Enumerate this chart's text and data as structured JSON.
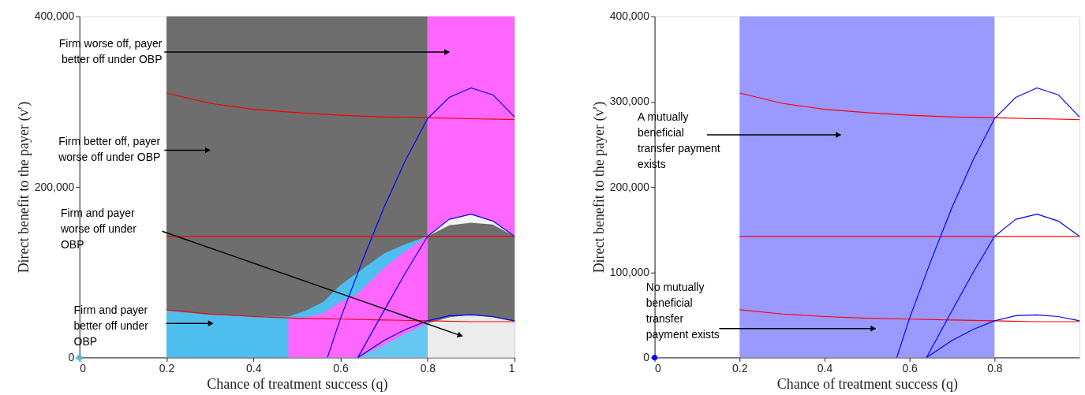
{
  "chart_data": [
    {
      "type": "area",
      "xlabel": "Chance of treatment success (q)",
      "ylabel": "Direct benefit to the payer (v′)",
      "xlim": [
        0,
        1
      ],
      "ylim": [
        0,
        400000
      ],
      "xticks": [
        0,
        0.2,
        0.4,
        0.6,
        0.8,
        1
      ],
      "yticks": [
        0,
        {
          "value": 200000,
          "label": "200,000"
        },
        {
          "value": 400000,
          "label": "400,000"
        }
      ],
      "grid": false,
      "series": [
        {
          "color": "#6e6e6e",
          "x": [
            0.2,
            0.8
          ],
          "values": [
            400000,
            400000
          ]
        },
        {
          "color": "#ff66ff",
          "x": [
            0.8,
            1.0
          ],
          "values": [
            400000,
            400000
          ]
        },
        {
          "color": "#f4f4f4",
          "x": [
            0.8,
            0.85,
            0.9,
            0.95,
            1.0
          ],
          "values": [
            142000,
            162000,
            168000,
            160000,
            142000
          ]
        },
        {
          "color": "#6e6e6e",
          "x": [
            0.8,
            0.85,
            0.9,
            0.95,
            1.0
          ],
          "values": [
            142000,
            155000,
            158000,
            156000,
            142000
          ]
        },
        {
          "color": "#ececec",
          "x": [
            0.8,
            0.85,
            0.9,
            0.95,
            1.0
          ],
          "values": [
            40000,
            47000,
            50000,
            47000,
            42000
          ]
        },
        {
          "color": "#4dbeee",
          "x": [
            0.2,
            0.3,
            0.4,
            0.48,
            0.52,
            0.56,
            0.6,
            0.64,
            0.7,
            0.75,
            0.8
          ],
          "values": [
            55000,
            50000,
            48000,
            48000,
            55000,
            65000,
            85000,
            100000,
            122000,
            133000,
            142000
          ]
        },
        {
          "color": "#ff66ff",
          "x": [
            0.48,
            0.52,
            0.56,
            0.6,
            0.64,
            0.7,
            0.75,
            0.8
          ],
          "values": [
            45000,
            47000,
            52000,
            65000,
            75000,
            105000,
            125000,
            142000
          ]
        },
        {
          "color": "#66c8f0",
          "x": [
            0.64,
            0.7,
            0.75,
            0.8
          ],
          "values": [
            0,
            15000,
            28000,
            40000
          ]
        },
        {
          "type": "line",
          "color": "#ff0000",
          "x": [
            0.2,
            0.3,
            0.4,
            0.5,
            0.6,
            0.7,
            0.8,
            0.9,
            1.0
          ],
          "values": [
            310000,
            298000,
            291000,
            287000,
            284000,
            282000,
            281000,
            280000,
            279000
          ]
        },
        {
          "type": "line",
          "color": "#ff0000",
          "x": [
            0.2,
            1.0
          ],
          "values": [
            142000,
            142000
          ]
        },
        {
          "type": "line",
          "color": "#ff0000",
          "x": [
            0.2,
            0.3,
            0.4,
            0.5,
            0.6,
            0.7,
            0.8,
            0.9,
            1.0
          ],
          "values": [
            56000,
            51000,
            48000,
            46000,
            45000,
            44000,
            43000,
            42000,
            42000
          ]
        },
        {
          "type": "line",
          "color": "#0000ff",
          "x": [
            0.57,
            0.6,
            0.65,
            0.7,
            0.75,
            0.8,
            0.85,
            0.9,
            0.95,
            1.0
          ],
          "values": [
            0,
            46000,
            113000,
            176000,
            232000,
            280000,
            305000,
            316000,
            308000,
            282000
          ]
        },
        {
          "type": "line",
          "color": "#0000ff",
          "x": [
            0.64,
            0.7,
            0.75,
            0.8,
            0.85,
            0.9,
            0.95,
            1.0
          ],
          "values": [
            0,
            55000,
            100000,
            142000,
            162000,
            168000,
            160000,
            142000
          ]
        },
        {
          "type": "line",
          "color": "#0000ff",
          "x": [
            0.64,
            0.7,
            0.75,
            0.8,
            0.85,
            0.9,
            0.95,
            1.0
          ],
          "values": [
            0,
            20000,
            33000,
            43000,
            49000,
            50000,
            48000,
            43000
          ]
        },
        {
          "type": "scatter",
          "color": "#4dbeee",
          "x": [
            0
          ],
          "values": [
            0
          ]
        }
      ],
      "annotations": [
        "Firm worse off, payer better off under OBP",
        "Firm better off, payer worse off under OBP",
        "Firm and payer worse off under OBP",
        "Firm and payer better off under OBP"
      ]
    },
    {
      "type": "area",
      "xlabel": "Chance of treatment success (q)",
      "ylabel": "Direct benefit to the payer (v′)",
      "xlim": [
        0,
        1
      ],
      "ylim": [
        0,
        400000
      ],
      "xticks": [
        0,
        0.2,
        0.4,
        0.6,
        0.8
      ],
      "yticks": [
        0,
        {
          "value": 100000,
          "label": "100,000"
        },
        {
          "value": 200000,
          "label": "200,000"
        },
        {
          "value": 300000,
          "label": "300,000"
        },
        {
          "value": 400000,
          "label": "400,000"
        }
      ],
      "grid": false,
      "series": [
        {
          "color": "#9999ff",
          "x": [
            0.2,
            0.8
          ],
          "values": [
            400000,
            400000
          ]
        },
        {
          "type": "line",
          "color": "#ff0000",
          "x": [
            0.2,
            0.3,
            0.4,
            0.5,
            0.6,
            0.7,
            0.8,
            0.9,
            1.0
          ],
          "values": [
            310000,
            298000,
            291000,
            287000,
            284000,
            282000,
            281000,
            280000,
            279000
          ]
        },
        {
          "type": "line",
          "color": "#ff0000",
          "x": [
            0.2,
            1.0
          ],
          "values": [
            142000,
            142000
          ]
        },
        {
          "type": "line",
          "color": "#ff0000",
          "x": [
            0.2,
            0.3,
            0.4,
            0.5,
            0.6,
            0.7,
            0.8,
            0.9,
            1.0
          ],
          "values": [
            56000,
            51000,
            48000,
            46000,
            45000,
            44000,
            43000,
            42000,
            42000
          ]
        },
        {
          "type": "line",
          "color": "#0000ff",
          "x": [
            0.57,
            0.6,
            0.65,
            0.7,
            0.75,
            0.8,
            0.85,
            0.9,
            0.95,
            1.0
          ],
          "values": [
            0,
            46000,
            113000,
            176000,
            232000,
            280000,
            305000,
            316000,
            308000,
            282000
          ]
        },
        {
          "type": "line",
          "color": "#0000ff",
          "x": [
            0.64,
            0.7,
            0.75,
            0.8,
            0.85,
            0.9,
            0.95,
            1.0
          ],
          "values": [
            0,
            55000,
            100000,
            142000,
            162000,
            168000,
            160000,
            142000
          ]
        },
        {
          "type": "line",
          "color": "#0000ff",
          "x": [
            0.64,
            0.7,
            0.75,
            0.8,
            0.85,
            0.9,
            0.95,
            1.0
          ],
          "values": [
            0,
            20000,
            33000,
            43000,
            49000,
            50000,
            48000,
            43000
          ]
        },
        {
          "type": "scatter",
          "color": "#0000ff",
          "x": [
            0
          ],
          "values": [
            0
          ]
        }
      ],
      "annotations": [
        "A mutually beneficial transfer payment exists",
        "No mutually beneficial transfer payment exists"
      ]
    }
  ]
}
